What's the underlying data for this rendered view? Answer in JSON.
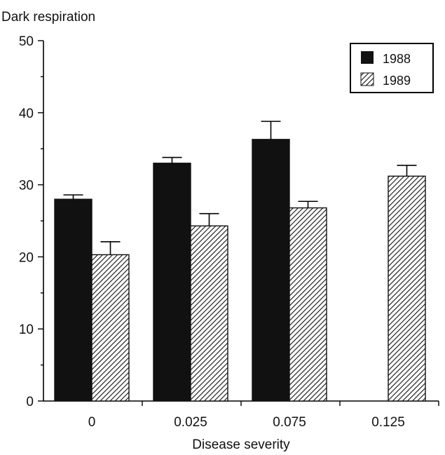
{
  "chart_data": {
    "type": "bar",
    "ylabel": "Dark respiration",
    "xlabel": "Disease severity",
    "categories": [
      "0",
      "0.025",
      "0.075",
      "0.125"
    ],
    "ylim": [
      0,
      50
    ],
    "yticks": [
      0,
      10,
      20,
      30,
      40,
      50
    ],
    "series": [
      {
        "name": "1988",
        "values": [
          28.0,
          33.0,
          36.3,
          null
        ],
        "error": [
          0.6,
          0.8,
          2.5,
          null
        ],
        "color": "#111111",
        "pattern": "solid"
      },
      {
        "name": "1989",
        "values": [
          20.3,
          24.3,
          26.8,
          31.2
        ],
        "error": [
          1.8,
          1.7,
          0.9,
          1.5
        ],
        "color": "#111111",
        "pattern": "hatched"
      }
    ],
    "legend_position": "top-right",
    "grid": false
  }
}
